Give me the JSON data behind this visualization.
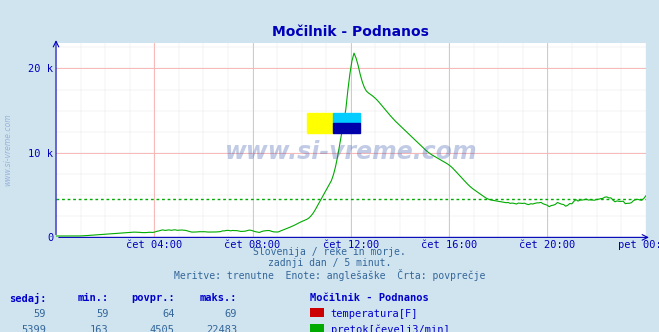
{
  "title": "Močilnik - Podnanos",
  "bg_color": "#d0e4f0",
  "plot_bg_color": "#ffffff",
  "text_color": "#0000bb",
  "grid_color_pink": "#ffaaaa",
  "grid_color_gray": "#cccccc",
  "x_labels": [
    "čet 04:00",
    "čet 08:00",
    "čet 12:00",
    "čet 16:00",
    "čet 20:00",
    "pet 00:00"
  ],
  "x_ticks_norm": [
    0.1667,
    0.3333,
    0.5,
    0.6667,
    0.8333,
    1.0
  ],
  "y_ticks": [
    0,
    10000,
    20000
  ],
  "y_tick_labels": [
    "0",
    "10 k",
    "20 k"
  ],
  "ylim_max": 23000,
  "subtitle_lines": [
    "Slovenija / reke in morje.",
    "zadnji dan / 5 minut.",
    "Meritve: trenutne  Enote: anglešaške  Črta: povprečje"
  ],
  "legend_title": "Močilnik - Podnanos",
  "legend_items": [
    {
      "label": "temperatura[F]",
      "color": "#cc0000"
    },
    {
      "label": "pretok[čevelj3/min]",
      "color": "#00aa00"
    }
  ],
  "stats_headers": [
    "sedaj:",
    "min.:",
    "povpr.:",
    "maks.:"
  ],
  "stats_rows": [
    [
      59,
      59,
      64,
      69
    ],
    [
      5399,
      163,
      4505,
      22483
    ]
  ],
  "flow_avg": 4505,
  "temp_avg": 64,
  "watermark_text": "www.si-vreme.com",
  "watermark_color": "#3355aa",
  "watermark_alpha": 0.3,
  "side_text": "www.si-vreme.com",
  "logo_yellow": "#ffff00",
  "logo_cyan": "#00ccff",
  "logo_blue": "#0000aa",
  "logo_darkblue": "#000066"
}
